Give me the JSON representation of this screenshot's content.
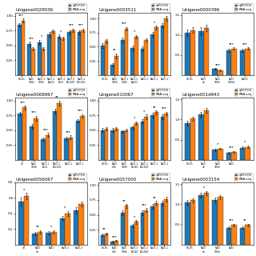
{
  "chart_data": [
    {
      "type": "bar",
      "title": "Unigene0029036",
      "categories": [
        "CK-4h",
        "NaCl\n100h",
        "NaCl-1\n100h",
        "NaCl-1\nNaCl1",
        "NaCl-1\nECL1",
        "NaCl-1\nECL100",
        "NaCl-1\nECL100"
      ],
      "series": [
        {
          "name": "qRT-PCR",
          "values": [
            0.85,
            0.52,
            0.55,
            0.68,
            0.65,
            0.72,
            0.72
          ],
          "errors": [
            0.03,
            0.04,
            0.04,
            0.04,
            0.03,
            0.03,
            0.03
          ]
        },
        {
          "name": "RNA-seq",
          "values": [
            0.92,
            0.44,
            0.44,
            0.74,
            0.62,
            0.75,
            0.75
          ],
          "errors": [
            0.03,
            0.03,
            0.03,
            0.03,
            0.03,
            0.03,
            0.03
          ]
        }
      ],
      "annotations": [
        "***",
        "***",
        "*",
        null,
        "*",
        "***",
        "***"
      ],
      "ylim": [
        0,
        1.05
      ],
      "yticks": [
        0.25,
        {
          "value": 0.5,
          "label": "0.50"
        },
        0.75,
        {
          "value": 1.0,
          "label": "1.00"
        }
      ],
      "grid": false,
      "legend": "upper right"
    },
    {
      "type": "bar",
      "title": "Unigene0003511",
      "categories": [
        "CK-4h",
        "NaCl\n100h",
        "NaCl-1\n100h",
        "NaCl-1\nNaCl1",
        "NaCl-1\n",
        "NaCl-1\n",
        "NaCl-1\n"
      ],
      "series": [
        {
          "name": "qRT-PCR",
          "values": [
            0.52,
            0.18,
            0.62,
            0.48,
            0.46,
            0.72,
            0.88
          ],
          "errors": [
            0.04,
            0.03,
            0.04,
            0.04,
            0.04,
            0.04,
            0.04
          ]
        },
        {
          "name": "RNA-seq",
          "values": [
            0.6,
            0.34,
            0.82,
            0.68,
            0.62,
            0.84,
            1.0
          ],
          "errors": [
            0.03,
            0.04,
            0.03,
            0.03,
            0.03,
            0.03,
            0.04
          ]
        }
      ],
      "annotations": [
        null,
        "**",
        "***",
        "*",
        null,
        "*",
        null
      ],
      "ylim": [
        0,
        1.1
      ],
      "yticks": [
        0.25,
        {
          "value": 0.5,
          "label": "0.50"
        },
        0.75,
        {
          "value": 1.0,
          "label": "1.00"
        }
      ],
      "grid": false,
      "legend": "upper right"
    },
    {
      "type": "bar",
      "title": "Unigene0000396",
      "categories": [
        "CK-4h",
        "NaCl\n4h",
        "NaCl\n100h",
        "NaCl\n100h2",
        "NaCl1"
      ],
      "series": [
        {
          "name": "qRT-PCR",
          "values": [
            1.05,
            1.1,
            0.15,
            0.62,
            0.62
          ],
          "errors": [
            0.08,
            0.1,
            0.02,
            0.04,
            0.04
          ]
        },
        {
          "name": "RNA-seq",
          "values": [
            1.12,
            1.18,
            0.12,
            0.66,
            0.66
          ],
          "errors": [
            0.07,
            0.08,
            0.02,
            0.03,
            0.03
          ]
        }
      ],
      "annotations": [
        null,
        null,
        "***",
        "***",
        "***"
      ],
      "ylim": [
        0,
        1.55
      ],
      "yticks": [
        0.5,
        1.0,
        1.5
      ],
      "grid": false,
      "legend": "upper right"
    },
    {
      "type": "bar",
      "title": "Unigene0068967",
      "categories": [
        "4h",
        "NaCl\n100h",
        "NaCl-1\nECL1",
        "NaCl-1\nECL100",
        "NaCl-1\n",
        "NaCl-1\n"
      ],
      "series": [
        {
          "name": "qRT-PCR",
          "values": [
            0.78,
            0.56,
            0.35,
            0.82,
            0.36,
            0.66
          ],
          "errors": [
            0.03,
            0.04,
            0.03,
            0.04,
            0.03,
            0.03
          ]
        },
        {
          "name": "RNA-seq",
          "values": [
            0.88,
            0.7,
            0.42,
            0.96,
            0.38,
            0.74
          ],
          "errors": [
            0.03,
            0.04,
            0.03,
            0.04,
            0.03,
            0.03
          ]
        }
      ],
      "annotations": [
        "***",
        "***",
        "***",
        "**",
        "***",
        "***"
      ],
      "ylim": [
        0,
        1.05
      ],
      "yticks": [
        0.25,
        {
          "value": 0.5,
          "label": "0.50"
        },
        0.75,
        {
          "value": 1.0,
          "label": "1.00"
        }
      ],
      "grid": false,
      "legend": "upper right"
    },
    {
      "type": "bar",
      "title": "Unigene010067",
      "categories": [
        "CK-4h",
        "NaCl\n40h",
        "NaCl\n100h",
        "NaCl-1\nECL40",
        "NaCl-1\nECL100",
        "NaCl-1\n",
        "NaCl-1\n"
      ],
      "series": [
        {
          "name": "qRT-PCR",
          "values": [
            0.5,
            0.5,
            0.48,
            0.55,
            0.65,
            0.75,
            0.72
          ],
          "errors": [
            0.03,
            0.03,
            0.02,
            0.03,
            0.04,
            0.04,
            0.04
          ]
        },
        {
          "name": "RNA-seq",
          "values": [
            0.52,
            0.52,
            0.5,
            0.62,
            0.72,
            0.8,
            0.78
          ],
          "errors": [
            0.03,
            0.03,
            0.02,
            0.03,
            0.04,
            0.03,
            0.03
          ]
        }
      ],
      "annotations": [
        null,
        null,
        null,
        "*",
        "*",
        "**",
        "***"
      ],
      "ylim": [
        0,
        1.05
      ],
      "yticks": [
        0.25,
        {
          "value": 0.5,
          "label": "0.50"
        },
        0.75,
        {
          "value": 1.0,
          "label": "1.00"
        }
      ],
      "grid": false,
      "legend": "upper right"
    },
    {
      "type": "bar",
      "title": "Unigene001d943",
      "categories": [
        "CK-4h",
        "NaCl\n4h",
        "NaCl\n100h",
        "NaCl\n",
        null
      ],
      "series": [
        {
          "name": "qRT-PCR",
          "values": [
            0.92,
            1.12,
            0.25,
            0.18,
            0.3
          ],
          "errors": [
            0.06,
            0.07,
            0.03,
            0.02,
            0.03
          ]
        },
        {
          "name": "RNA-seq",
          "values": [
            1.02,
            1.22,
            0.28,
            0.2,
            0.32
          ],
          "errors": [
            0.05,
            0.06,
            0.02,
            0.02,
            0.03
          ]
        }
      ],
      "annotations": [
        null,
        null,
        "*",
        "***",
        "*"
      ],
      "ylim": [
        0,
        1.55
      ],
      "yticks": [
        0.5,
        1.0,
        1.5
      ],
      "grid": false,
      "legend": "upper right"
    },
    {
      "type": "bar",
      "title": "Unigene0056067",
      "categories": [
        "4h",
        "NaCl\n4h",
        "NaCl\n",
        "NaCl-1\n",
        "NaCl-1\n"
      ],
      "series": [
        {
          "name": "qRT-PCR",
          "values": [
            0.55,
            0.14,
            0.15,
            0.34,
            0.44
          ],
          "errors": [
            0.05,
            0.02,
            0.02,
            0.03,
            0.04
          ]
        },
        {
          "name": "RNA-seq",
          "values": [
            0.62,
            0.16,
            0.16,
            0.4,
            0.52
          ],
          "errors": [
            0.04,
            0.02,
            0.02,
            0.03,
            0.03
          ]
        }
      ],
      "annotations": [
        "*",
        "**",
        "*",
        "*",
        null
      ],
      "ylim": [
        0,
        0.8
      ],
      "yticks": [
        0.2,
        0.4,
        0.6,
        0.8
      ],
      "grid": false,
      "legend": "upper right"
    },
    {
      "type": "bar",
      "title": "Unigene0057000",
      "categories": [
        "CK-4h",
        "NaCl\n40h",
        "NaCl\n100h",
        "NaCl-1\nECL40",
        "NaCl-1\nECL100",
        "NaCl-1\n",
        "NaCl-1\n"
      ],
      "series": [
        {
          "name": "qRT-PCR",
          "values": [
            0.16,
            0.05,
            0.54,
            0.32,
            0.54,
            0.64,
            0.7
          ],
          "errors": [
            0.02,
            0.01,
            0.04,
            0.03,
            0.04,
            0.04,
            0.04
          ]
        },
        {
          "name": "RNA-seq",
          "values": [
            0.18,
            0.06,
            0.65,
            0.38,
            0.58,
            0.7,
            0.76
          ],
          "errors": [
            0.02,
            0.01,
            0.03,
            0.03,
            0.03,
            0.03,
            0.04
          ]
        }
      ],
      "annotations": [
        "**",
        "***",
        "**",
        "*",
        "***",
        "**",
        null
      ],
      "ylim": [
        0,
        1.05
      ],
      "yticks": [
        0.25,
        {
          "value": 0.5,
          "label": "0.50"
        },
        0.75,
        {
          "value": 1.0,
          "label": "1.00"
        }
      ],
      "grid": false,
      "legend": "upper right"
    },
    {
      "type": "bar",
      "title": "Unigene0053154",
      "categories": [
        "CK-4h",
        "NaCl\n4h",
        "NaCl\n100h",
        "NaCl\n",
        null
      ],
      "series": [
        {
          "name": "qRT-PCR",
          "values": [
            1.05,
            1.22,
            1.1,
            0.42,
            0.42
          ],
          "errors": [
            0.06,
            0.06,
            0.06,
            0.03,
            0.03
          ]
        },
        {
          "name": "RNA-seq",
          "values": [
            1.1,
            1.28,
            1.18,
            0.48,
            0.48
          ],
          "errors": [
            0.05,
            0.05,
            0.05,
            0.03,
            0.03
          ]
        }
      ],
      "annotations": [
        null,
        "*",
        null,
        "***",
        "**"
      ],
      "ylim": [
        0,
        1.55
      ],
      "yticks": [
        0.5,
        1.0,
        1.5
      ],
      "grid": false,
      "legend": "upper right"
    }
  ]
}
